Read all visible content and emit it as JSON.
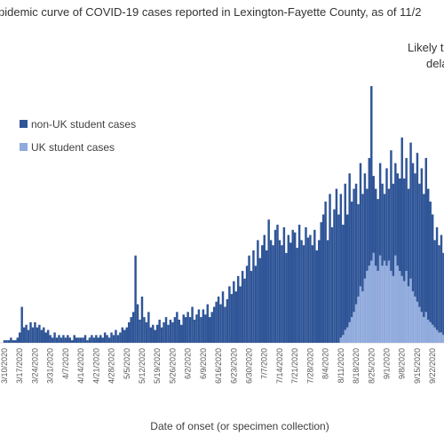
{
  "chart_data": {
    "type": "stacked-bar",
    "title": "pidemic curve of COVID-19 cases reported in Lexington-Fayette County, as of 11/2",
    "annotations": [
      "Likely to",
      "dela"
    ],
    "x_label": "Date of onset (or specimen collection)",
    "categories": [
      "3/10/2020",
      null,
      null,
      null,
      null,
      null,
      null,
      "3/17/2020",
      null,
      null,
      null,
      null,
      null,
      null,
      "3/24/2020",
      null,
      null,
      null,
      null,
      null,
      null,
      "3/31/2020",
      null,
      null,
      null,
      null,
      null,
      null,
      "4/7/2020",
      null,
      null,
      null,
      null,
      null,
      null,
      "4/14/2020",
      null,
      null,
      null,
      null,
      null,
      null,
      "4/21/2020",
      null,
      null,
      null,
      null,
      null,
      null,
      "4/28/2020",
      null,
      null,
      null,
      null,
      null,
      null,
      "5/5/2020",
      null,
      null,
      null,
      null,
      null,
      null,
      "5/12/2020",
      null,
      null,
      null,
      null,
      null,
      null,
      "5/19/2020",
      null,
      null,
      null,
      null,
      null,
      null,
      "5/26/2020",
      null,
      null,
      null,
      null,
      null,
      null,
      "6/2/2020",
      null,
      null,
      null,
      null,
      null,
      null,
      "6/9/2020",
      null,
      null,
      null,
      null,
      null,
      null,
      "6/16/2020",
      null,
      null,
      null,
      null,
      null,
      null,
      "6/23/2020",
      null,
      null,
      null,
      null,
      null,
      null,
      "6/30/2020",
      null,
      null,
      null,
      null,
      null,
      null,
      "7/7/2020",
      null,
      null,
      null,
      null,
      null,
      null,
      "7/14/2020",
      null,
      null,
      null,
      null,
      null,
      null,
      "7/21/2020",
      null,
      null,
      null,
      null,
      null,
      null,
      "7/28/2020",
      null,
      null,
      null,
      null,
      null,
      null,
      "8/4/2020",
      null,
      null,
      null,
      null,
      null,
      null,
      "8/11/2020",
      null,
      null,
      null,
      null,
      null,
      null,
      "8/18/2020",
      null,
      null,
      null,
      null,
      null,
      null,
      "8/25/2020",
      null,
      null,
      null,
      null,
      null,
      null,
      "9/1/2020",
      null,
      null,
      null,
      null,
      null,
      null,
      "9/8/2020",
      null,
      null,
      null,
      null,
      null,
      null,
      "9/15/2020",
      null,
      null,
      null,
      null,
      null,
      null,
      "9/22/2020",
      null,
      null,
      null,
      null,
      null,
      null
    ],
    "series": [
      {
        "name": "UK student cases",
        "color": "#8faadc",
        "values": [
          0,
          0,
          0,
          0,
          0,
          0,
          0,
          0,
          0,
          0,
          0,
          0,
          0,
          0,
          0,
          0,
          0,
          0,
          0,
          0,
          0,
          0,
          0,
          0,
          0,
          0,
          0,
          0,
          0,
          0,
          0,
          0,
          0,
          0,
          0,
          0,
          0,
          0,
          0,
          0,
          0,
          0,
          0,
          0,
          0,
          0,
          0,
          0,
          0,
          0,
          0,
          0,
          0,
          0,
          0,
          0,
          0,
          0,
          0,
          0,
          0,
          0,
          0,
          0,
          0,
          0,
          0,
          0,
          0,
          0,
          0,
          0,
          0,
          0,
          0,
          0,
          0,
          0,
          0,
          0,
          0,
          0,
          0,
          0,
          0,
          0,
          0,
          0,
          0,
          0,
          0,
          0,
          0,
          0,
          0,
          0,
          0,
          0,
          0,
          0,
          0,
          0,
          0,
          0,
          0,
          0,
          0,
          0,
          0,
          0,
          0,
          0,
          0,
          0,
          0,
          0,
          0,
          0,
          0,
          0,
          0,
          0,
          0,
          0,
          0,
          0,
          0,
          0,
          0,
          0,
          0,
          0,
          0,
          0,
          0,
          0,
          0,
          0,
          0,
          0,
          0,
          0,
          0,
          0,
          0,
          0,
          0,
          0,
          0,
          0,
          0,
          0,
          0,
          0,
          2,
          3,
          5,
          6,
          8,
          10,
          12,
          15,
          18,
          22,
          20,
          25,
          28,
          30,
          32,
          35,
          30,
          28,
          34,
          30,
          32,
          30,
          32,
          28,
          26,
          34,
          30,
          28,
          26,
          24,
          28,
          22,
          25,
          20,
          18,
          16,
          14,
          12,
          10,
          12,
          9,
          8,
          7,
          6,
          5,
          4,
          4,
          3,
          3
        ]
      },
      {
        "name": "non-UK student cases",
        "color": "#2f5597",
        "values": [
          1,
          1,
          1,
          2,
          1,
          1,
          2,
          4,
          14,
          6,
          7,
          5,
          8,
          6,
          8,
          6,
          7,
          5,
          6,
          4,
          5,
          3,
          2,
          4,
          2,
          3,
          2,
          3,
          2,
          3,
          2,
          1,
          3,
          2,
          2,
          2,
          2,
          3,
          1,
          2,
          3,
          2,
          3,
          2,
          3,
          2,
          4,
          3,
          2,
          4,
          3,
          5,
          3,
          4,
          6,
          5,
          6,
          8,
          10,
          12,
          34,
          15,
          9,
          18,
          10,
          8,
          12,
          6,
          7,
          5,
          7,
          9,
          6,
          8,
          10,
          7,
          9,
          8,
          10,
          12,
          9,
          7,
          11,
          10,
          12,
          10,
          14,
          9,
          11,
          13,
          10,
          13,
          11,
          15,
          10,
          12,
          14,
          16,
          18,
          15,
          20,
          14,
          17,
          22,
          19,
          24,
          20,
          26,
          22,
          28,
          25,
          30,
          34,
          28,
          36,
          30,
          40,
          33,
          38,
          42,
          36,
          48,
          40,
          38,
          44,
          46,
          40,
          38,
          45,
          35,
          42,
          39,
          44,
          43,
          37,
          46,
          40,
          38,
          45,
          41,
          42,
          38,
          44,
          36,
          40,
          47,
          50,
          55,
          40,
          58,
          45,
          52,
          60,
          50,
          56,
          43,
          57,
          44,
          58,
          45,
          48,
          47,
          36,
          48,
          38,
          41,
          32,
          42,
          68,
          30,
          30,
          28,
          36,
          32,
          26,
          38,
          28,
          47,
          36,
          36,
          36,
          36,
          54,
          40,
          44,
          38,
          53,
          50,
          48,
          58,
          48,
          56,
          48,
          60,
          51,
          47,
          43,
          34,
          40,
          34,
          38,
          32,
          27
        ]
      }
    ],
    "ylim": [
      0,
      100
    ]
  }
}
